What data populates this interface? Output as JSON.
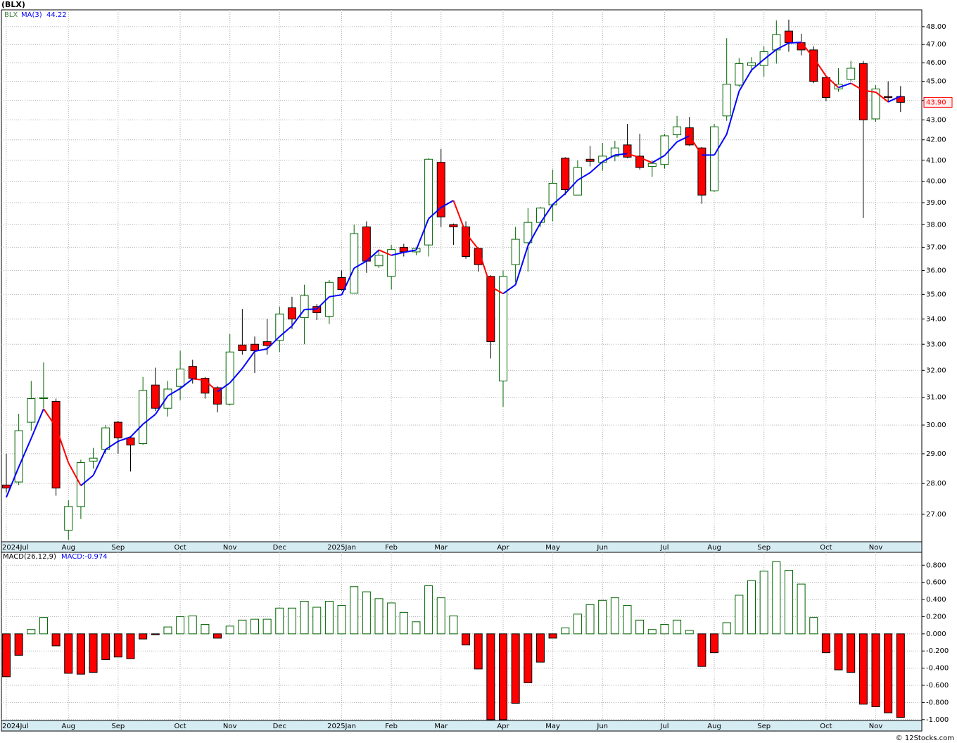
{
  "chart_data": [
    {
      "type": "candlestick",
      "title": "(BLX)",
      "symbol": "BLX",
      "log_scale": true,
      "grid": true,
      "categories": [
        "2024Jul",
        null,
        null,
        null,
        null,
        "Aug",
        null,
        null,
        null,
        "Sep",
        null,
        null,
        null,
        null,
        "Oct",
        null,
        null,
        null,
        "Nov",
        null,
        null,
        null,
        "Dec",
        null,
        null,
        null,
        null,
        "2025Jan",
        null,
        null,
        null,
        "Feb",
        null,
        null,
        null,
        "Mar",
        null,
        null,
        null,
        null,
        "Apr",
        null,
        null,
        null,
        "May",
        null,
        null,
        null,
        "Jun",
        null,
        null,
        null,
        null,
        "Jul",
        null,
        null,
        null,
        "Aug",
        null,
        null,
        null,
        "Sep",
        null,
        null,
        null,
        null,
        "Oct",
        null,
        null,
        null,
        "Nov",
        null,
        null
      ],
      "open": [
        27.95,
        28.05,
        30.1,
        30.95,
        30.85,
        26.5,
        27.25,
        28.75,
        29.15,
        30.1,
        29.55,
        29.35,
        31.45,
        30.6,
        31.4,
        32.15,
        31.7,
        31.35,
        30.75,
        32.97,
        33.0,
        33.1,
        33.15,
        34.45,
        34.05,
        34.5,
        34.1,
        35.7,
        35.05,
        37.9,
        36.2,
        35.75,
        37.0,
        36.8,
        37.1,
        40.9,
        38.0,
        37.9,
        36.95,
        35.75,
        31.6,
        36.25,
        37.2,
        38.1,
        38.9,
        41.1,
        39.35,
        41.05,
        40.9,
        41.2,
        41.75,
        41.2,
        40.7,
        40.8,
        42.25,
        42.6,
        41.6,
        39.55,
        43.2,
        44.8,
        45.85,
        45.85,
        46.7,
        47.75,
        47.1,
        46.7,
        45.2,
        44.6,
        45.1,
        45.95,
        43.05,
        44.2,
        44.2
      ],
      "high": [
        29.0,
        30.4,
        31.6,
        32.3,
        30.95,
        27.45,
        28.8,
        29.2,
        30.0,
        30.15,
        29.6,
        31.75,
        32.1,
        31.6,
        32.75,
        32.4,
        31.75,
        31.4,
        33.4,
        34.4,
        33.3,
        34.0,
        34.5,
        34.9,
        35.4,
        34.6,
        35.6,
        36.0,
        38.0,
        38.15,
        36.9,
        37.1,
        37.15,
        37.0,
        41.1,
        41.55,
        38.05,
        38.15,
        37.0,
        35.8,
        36.0,
        37.9,
        38.75,
        38.8,
        40.55,
        41.15,
        41.0,
        41.7,
        41.85,
        41.95,
        42.8,
        42.3,
        41.0,
        42.3,
        43.2,
        43.15,
        41.65,
        42.8,
        47.35,
        46.25,
        46.3,
        46.9,
        48.35,
        48.4,
        47.6,
        46.9,
        45.3,
        45.7,
        46.1,
        46.1,
        44.8,
        45.0,
        44.75
      ],
      "low": [
        27.7,
        27.95,
        29.8,
        30.6,
        27.6,
        26.2,
        26.85,
        28.5,
        29.0,
        29.0,
        28.4,
        29.3,
        30.5,
        30.3,
        30.9,
        31.5,
        30.95,
        30.45,
        30.7,
        32.6,
        31.9,
        32.6,
        32.7,
        33.6,
        33.0,
        33.95,
        33.8,
        35.15,
        35.05,
        35.9,
        36.1,
        35.2,
        36.6,
        36.65,
        36.6,
        37.9,
        37.1,
        36.5,
        35.95,
        32.45,
        30.65,
        35.5,
        35.95,
        37.9,
        38.15,
        39.35,
        39.35,
        40.7,
        40.5,
        40.95,
        41.1,
        40.55,
        40.2,
        40.6,
        42.1,
        41.7,
        38.95,
        39.5,
        42.95,
        44.7,
        45.5,
        45.25,
        45.95,
        46.6,
        46.4,
        44.9,
        43.95,
        44.45,
        45.0,
        38.3,
        42.9,
        43.9,
        43.4
      ],
      "close": [
        27.85,
        29.8,
        30.95,
        30.98,
        27.85,
        27.25,
        28.7,
        28.85,
        29.9,
        29.55,
        29.3,
        31.25,
        30.6,
        31.3,
        32.05,
        31.7,
        31.15,
        30.75,
        32.7,
        32.75,
        32.75,
        32.95,
        34.2,
        34.0,
        34.95,
        34.25,
        35.5,
        35.2,
        37.6,
        36.4,
        36.65,
        36.9,
        36.8,
        36.95,
        41.05,
        38.35,
        37.9,
        36.6,
        36.25,
        33.1,
        35.75,
        37.35,
        38.1,
        38.75,
        39.9,
        39.6,
        40.65,
        40.95,
        41.2,
        41.6,
        41.15,
        40.65,
        40.85,
        42.2,
        42.65,
        41.75,
        39.35,
        42.65,
        44.85,
        45.95,
        46.0,
        46.6,
        47.55,
        47.1,
        46.7,
        45.0,
        44.15,
        44.85,
        45.7,
        43.0,
        44.6,
        44.15,
        43.9
      ],
      "up_color": "#006400",
      "down_color": "#ff0000",
      "ma": {
        "name": "MA(3)",
        "up_color": "#0000ff",
        "down_color": "#ff0000",
        "values": [
          27.55,
          28.55,
          29.53,
          30.58,
          29.93,
          28.69,
          27.93,
          28.27,
          29.15,
          29.43,
          29.58,
          30.03,
          30.38,
          31.05,
          31.32,
          31.68,
          31.63,
          31.2,
          31.53,
          32.07,
          32.73,
          32.82,
          33.3,
          33.72,
          34.38,
          34.4,
          34.9,
          34.98,
          36.1,
          36.4,
          36.88,
          36.65,
          36.78,
          36.88,
          38.27,
          38.78,
          39.1,
          37.62,
          36.92,
          35.32,
          35.03,
          35.4,
          37.07,
          38.07,
          38.92,
          39.42,
          40.05,
          40.4,
          40.93,
          41.25,
          41.32,
          41.13,
          40.88,
          41.23,
          41.9,
          42.2,
          41.25,
          41.25,
          42.28,
          44.48,
          45.6,
          46.18,
          46.72,
          47.08,
          47.12,
          46.27,
          45.28,
          44.67,
          44.9,
          44.52,
          44.43,
          43.92,
          44.22
        ]
      },
      "last_price_label": "43.90",
      "ylim": [
        26.14,
        48.96
      ],
      "yticks": [
        {
          "value": 27,
          "label": "27.00"
        },
        {
          "value": 28,
          "label": "28.00"
        },
        {
          "value": 29,
          "label": "29.00"
        },
        {
          "value": 30,
          "label": "30.00"
        },
        {
          "value": 31,
          "label": "31.00"
        },
        {
          "value": 32,
          "label": "32.00"
        },
        {
          "value": 33,
          "label": "33.00"
        },
        {
          "value": 34,
          "label": "34.00"
        },
        {
          "value": 35,
          "label": "35.00"
        },
        {
          "value": 36,
          "label": "36.00"
        },
        {
          "value": 37,
          "label": "37.00"
        },
        {
          "value": 38,
          "label": "38.00"
        },
        {
          "value": 39,
          "label": "39.00"
        },
        {
          "value": 40,
          "label": "40.00"
        },
        {
          "value": 41,
          "label": "41.00"
        },
        {
          "value": 42,
          "label": "42.00"
        },
        {
          "value": 43,
          "label": "43.00"
        },
        {
          "value": 44,
          "label": "44.00"
        },
        {
          "value": 45,
          "label": "45.00"
        },
        {
          "value": 46,
          "label": "46.00"
        },
        {
          "value": 47,
          "label": "47.00"
        },
        {
          "value": 48,
          "label": "48.00"
        }
      ]
    },
    {
      "type": "bar",
      "title": "MACD(26,12,9)",
      "legend_label": "MACD:-0.974",
      "grid": true,
      "up_color": "#006400",
      "down_color": "#ff0000",
      "values": [
        -0.5,
        -0.25,
        0.05,
        0.19,
        -0.14,
        -0.46,
        -0.47,
        -0.45,
        -0.3,
        -0.27,
        -0.29,
        -0.06,
        -0.01,
        0.08,
        0.2,
        0.21,
        0.11,
        -0.05,
        0.09,
        0.16,
        0.17,
        0.17,
        0.3,
        0.3,
        0.38,
        0.31,
        0.38,
        0.33,
        0.55,
        0.49,
        0.41,
        0.36,
        0.25,
        0.14,
        0.56,
        0.42,
        0.21,
        -0.13,
        -0.41,
        -1.0,
        -1.0,
        -0.81,
        -0.57,
        -0.33,
        -0.05,
        0.07,
        0.23,
        0.34,
        0.39,
        0.42,
        0.33,
        0.16,
        0.05,
        0.11,
        0.16,
        0.04,
        -0.38,
        -0.22,
        0.13,
        0.45,
        0.62,
        0.73,
        0.84,
        0.74,
        0.58,
        0.19,
        -0.22,
        -0.42,
        -0.45,
        -0.82,
        -0.85,
        -0.92,
        -0.974
      ],
      "ylim": [
        -1.01,
        0.95
      ],
      "yticks": [
        {
          "value": -1.0,
          "label": "-1.000"
        },
        {
          "value": -0.8,
          "label": "-0.800"
        },
        {
          "value": -0.6,
          "label": "-0.600"
        },
        {
          "value": -0.4,
          "label": "-0.400"
        },
        {
          "value": -0.2,
          "label": "-0.200"
        },
        {
          "value": 0,
          "label": "0.000"
        },
        {
          "value": 0.2,
          "label": "0.200"
        },
        {
          "value": 0.4,
          "label": "0.400"
        },
        {
          "value": 0.6,
          "label": "0.600"
        },
        {
          "value": 0.8,
          "label": "0.800"
        }
      ]
    }
  ],
  "footer": "© 12Stocks.com"
}
